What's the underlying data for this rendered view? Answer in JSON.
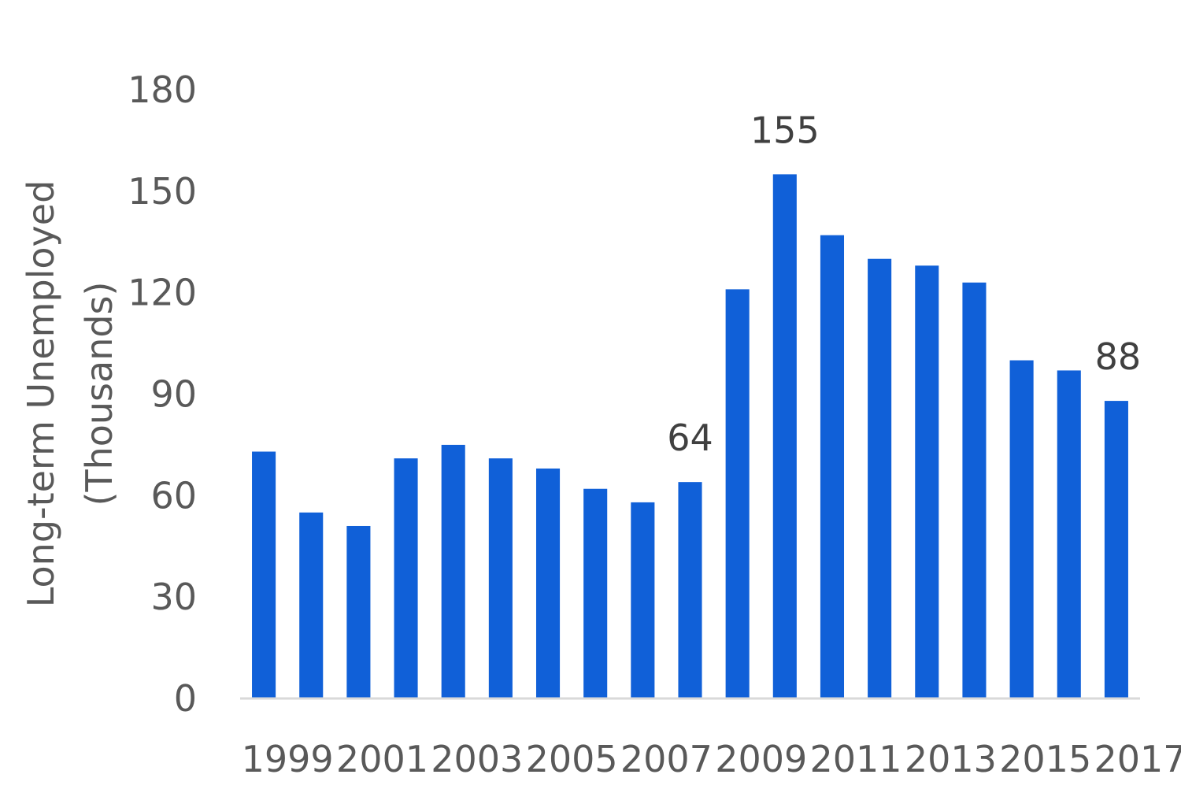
{
  "chart_data": {
    "type": "bar",
    "categories": [
      "1999",
      "2000",
      "2001",
      "2002",
      "2003",
      "2004",
      "2005",
      "2006",
      "2007",
      "2008",
      "2009",
      "2010",
      "2011",
      "2012",
      "2013",
      "2014",
      "2015",
      "2016",
      "2017"
    ],
    "x_tick_labels": [
      "1999",
      "2001",
      "2003",
      "2005",
      "2007",
      "2009",
      "2011",
      "2013",
      "2015",
      "2017"
    ],
    "values": [
      73,
      55,
      51,
      71,
      75,
      71,
      68,
      62,
      58,
      64,
      121,
      155,
      137,
      130,
      128,
      123,
      100,
      97,
      88
    ],
    "data_labels": [
      {
        "category": "2008",
        "text": "64"
      },
      {
        "category": "2010",
        "text": "155"
      },
      {
        "category": "2017",
        "text": "88"
      }
    ],
    "ylabel_line1": "Long-term Unemployed",
    "ylabel_line2": "(Thousands)",
    "ylim": [
      0,
      180
    ],
    "yticks": [
      0,
      30,
      60,
      90,
      120,
      150,
      180
    ],
    "grid": false,
    "bar_color": "#1060d8",
    "axis_color": "#d9d9d9"
  }
}
